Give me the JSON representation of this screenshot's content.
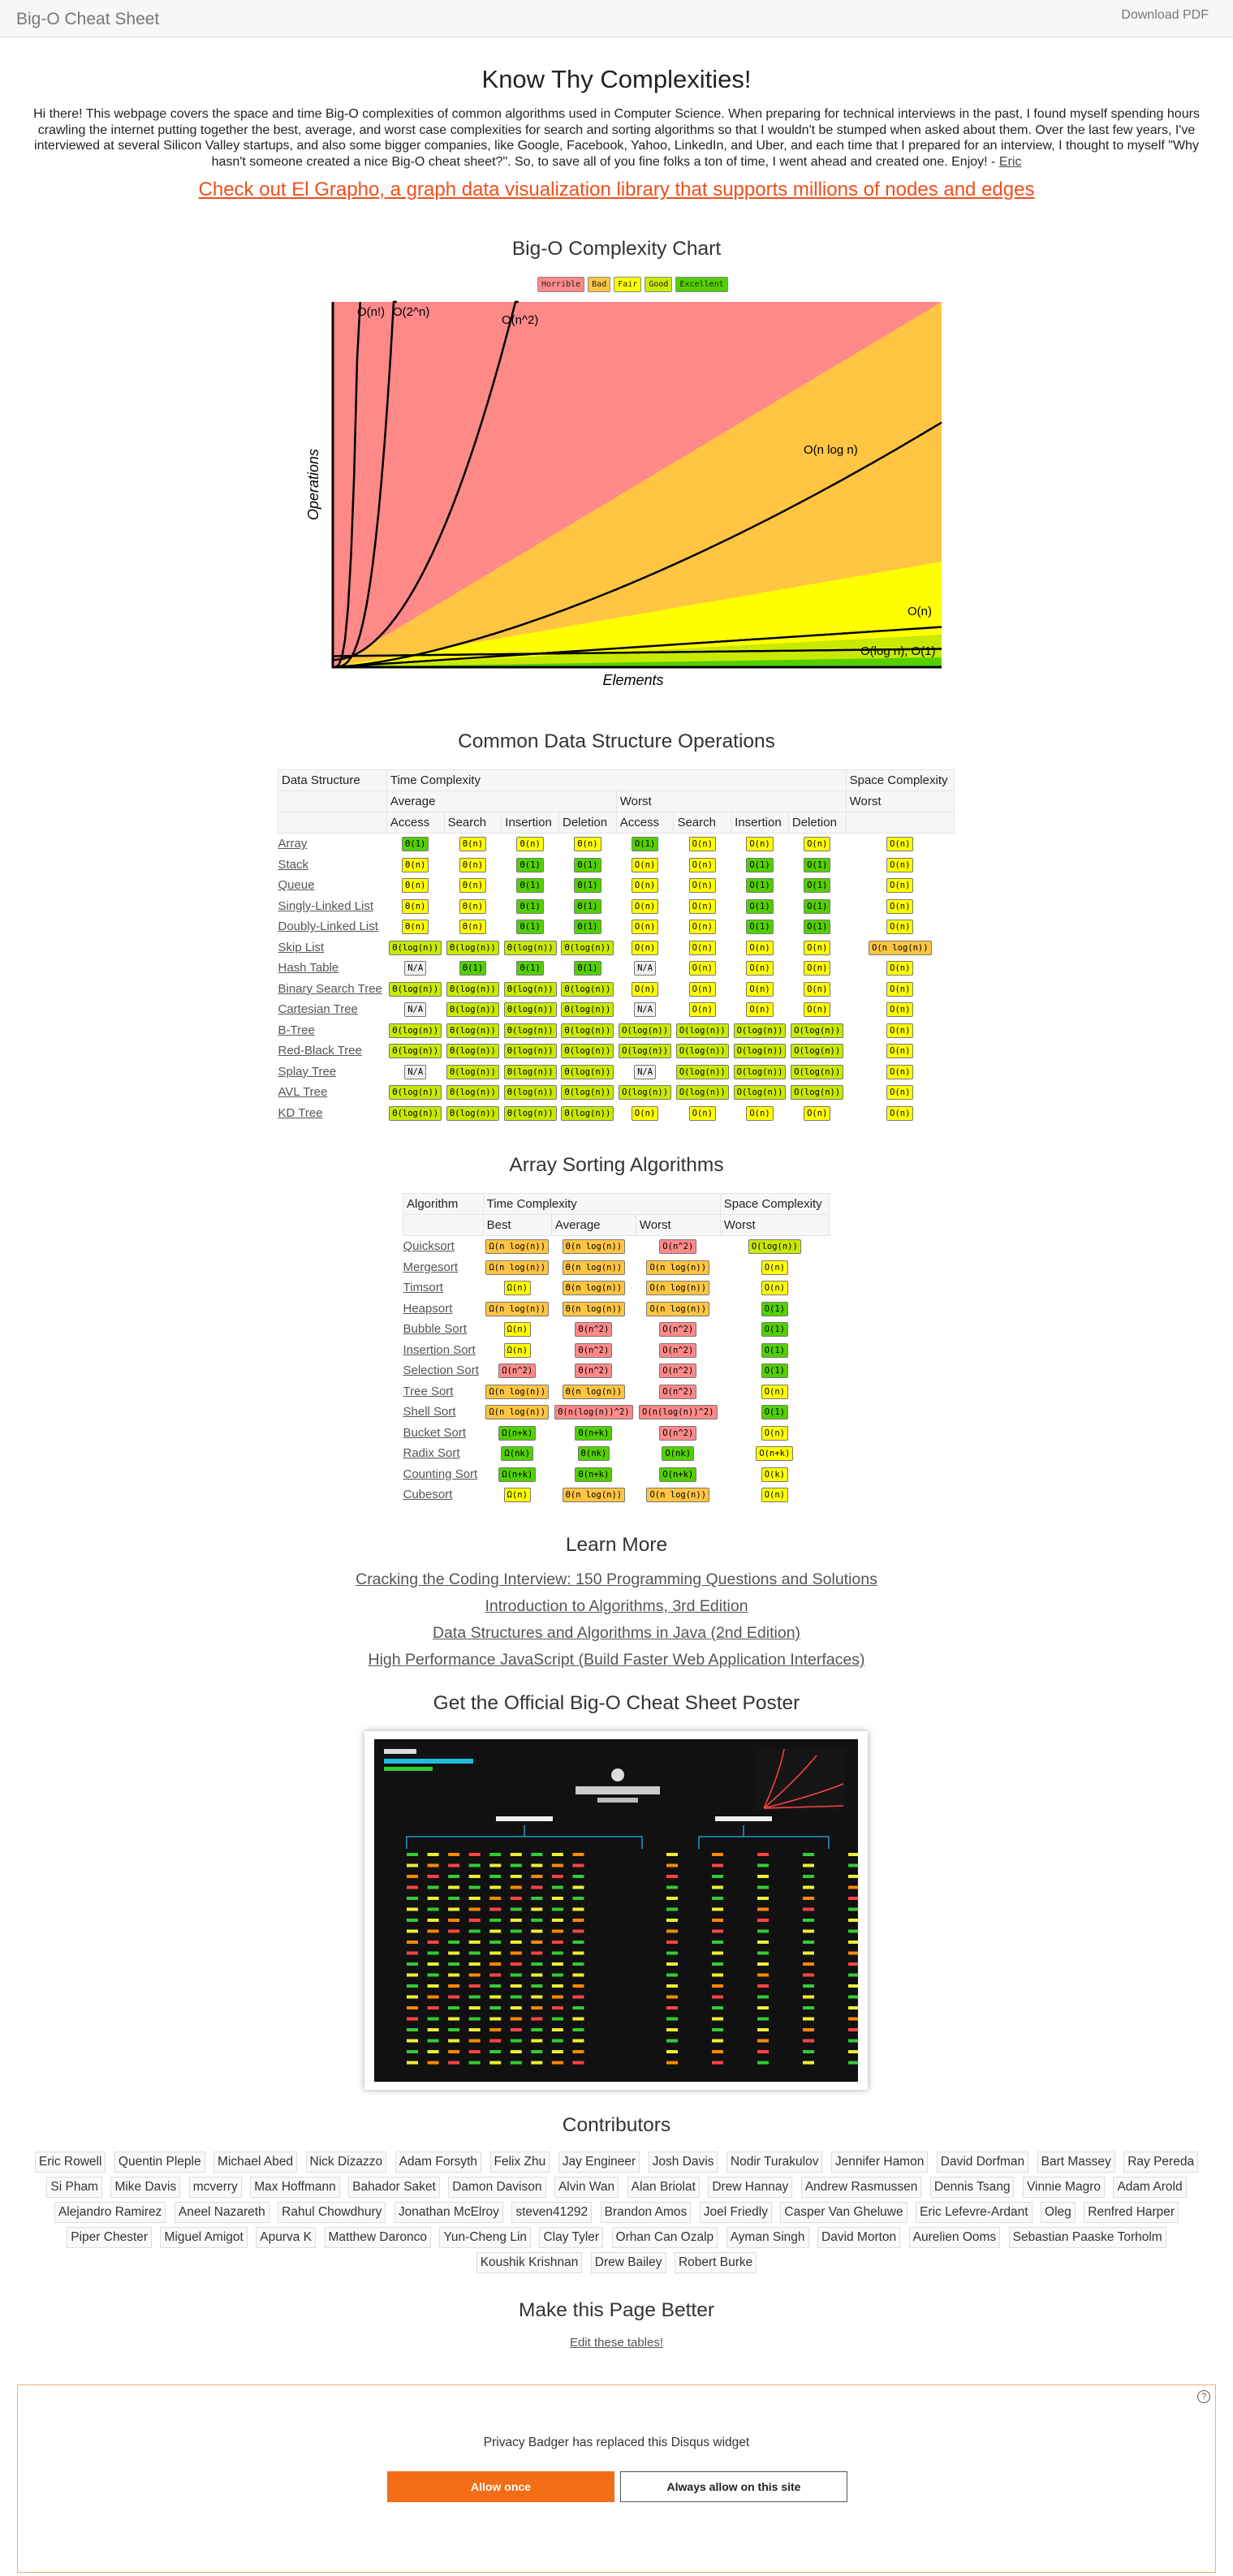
{
  "nav": {
    "brand": "Big-O Cheat Sheet",
    "download": "Download PDF"
  },
  "title": "Know Thy Complexities!",
  "intro": "Hi there!  This webpage covers the space and time Big-O complexities of common algorithms used in Computer Science.  When preparing for technical interviews in the past, I found myself spending hours crawling the internet putting together the best, average, and worst case complexities for search and sorting algorithms so that I wouldn't be stumped when asked about them.  Over the last few years, I've interviewed at several Silicon Valley startups, and also some bigger companies, like Google, Facebook, Yahoo, LinkedIn, and Uber, and each time that I prepared for an interview, I thought to myself \"Why hasn't someone created a nice Big-O cheat sheet?\".  So, to save all of you fine folks a ton of time, I went ahead and created one.  Enjoy! - ",
  "intro_author": "Eric",
  "promo": "Check out El Grapho, a graph data visualization library that supports millions of nodes and edges",
  "chart_heading": "Big-O Complexity Chart",
  "legend": [
    {
      "label": "Horrible",
      "color": "#ff8989"
    },
    {
      "label": "Bad",
      "color": "#ffc543"
    },
    {
      "label": "Fair",
      "color": "#ffff00"
    },
    {
      "label": "Good",
      "color": "#c8ea00"
    },
    {
      "label": "Excellent",
      "color": "#53d000"
    }
  ],
  "chart_data": {
    "type": "line",
    "xlabel": "Elements",
    "ylabel": "Operations",
    "series": [
      {
        "name": "O(log n), O(1)"
      },
      {
        "name": "O(n)"
      },
      {
        "name": "O(n log n)"
      },
      {
        "name": "O(n^2)"
      },
      {
        "name": "O(2^n)"
      },
      {
        "name": "O(n!)"
      }
    ]
  },
  "ds_heading": "Common Data Structure Operations",
  "ds_head": {
    "col1": "Data Structure",
    "time": "Time Complexity",
    "space": "Space Complexity",
    "avg": "Average",
    "worst": "Worst",
    "sworst": "Worst",
    "ops": [
      "Access",
      "Search",
      "Insertion",
      "Deletion",
      "Access",
      "Search",
      "Insertion",
      "Deletion"
    ]
  },
  "ds_rows": [
    {
      "name": "Array",
      "cells": [
        [
          "Θ(1)",
          "g"
        ],
        [
          "Θ(n)",
          "y"
        ],
        [
          "Θ(n)",
          "y"
        ],
        [
          "Θ(n)",
          "y"
        ],
        [
          "O(1)",
          "g"
        ],
        [
          "O(n)",
          "y"
        ],
        [
          "O(n)",
          "y"
        ],
        [
          "O(n)",
          "y"
        ],
        [
          "O(n)",
          "y"
        ]
      ]
    },
    {
      "name": "Stack",
      "cells": [
        [
          "Θ(n)",
          "y"
        ],
        [
          "Θ(n)",
          "y"
        ],
        [
          "Θ(1)",
          "g"
        ],
        [
          "Θ(1)",
          "g"
        ],
        [
          "O(n)",
          "y"
        ],
        [
          "O(n)",
          "y"
        ],
        [
          "O(1)",
          "g"
        ],
        [
          "O(1)",
          "g"
        ],
        [
          "O(n)",
          "y"
        ]
      ]
    },
    {
      "name": "Queue",
      "cells": [
        [
          "Θ(n)",
          "y"
        ],
        [
          "Θ(n)",
          "y"
        ],
        [
          "Θ(1)",
          "g"
        ],
        [
          "Θ(1)",
          "g"
        ],
        [
          "O(n)",
          "y"
        ],
        [
          "O(n)",
          "y"
        ],
        [
          "O(1)",
          "g"
        ],
        [
          "O(1)",
          "g"
        ],
        [
          "O(n)",
          "y"
        ]
      ]
    },
    {
      "name": "Singly-Linked List",
      "cells": [
        [
          "Θ(n)",
          "y"
        ],
        [
          "Θ(n)",
          "y"
        ],
        [
          "Θ(1)",
          "g"
        ],
        [
          "Θ(1)",
          "g"
        ],
        [
          "O(n)",
          "y"
        ],
        [
          "O(n)",
          "y"
        ],
        [
          "O(1)",
          "g"
        ],
        [
          "O(1)",
          "g"
        ],
        [
          "O(n)",
          "y"
        ]
      ]
    },
    {
      "name": "Doubly-Linked List",
      "cells": [
        [
          "Θ(n)",
          "y"
        ],
        [
          "Θ(n)",
          "y"
        ],
        [
          "Θ(1)",
          "g"
        ],
        [
          "Θ(1)",
          "g"
        ],
        [
          "O(n)",
          "y"
        ],
        [
          "O(n)",
          "y"
        ],
        [
          "O(1)",
          "g"
        ],
        [
          "O(1)",
          "g"
        ],
        [
          "O(n)",
          "y"
        ]
      ]
    },
    {
      "name": "Skip List",
      "cells": [
        [
          "Θ(log(n))",
          "lg2"
        ],
        [
          "Θ(log(n))",
          "lg2"
        ],
        [
          "Θ(log(n))",
          "lg2"
        ],
        [
          "Θ(log(n))",
          "lg2"
        ],
        [
          "O(n)",
          "y"
        ],
        [
          "O(n)",
          "y"
        ],
        [
          "O(n)",
          "y"
        ],
        [
          "O(n)",
          "y"
        ],
        [
          "O(n log(n))",
          "o"
        ]
      ]
    },
    {
      "name": "Hash Table",
      "cells": [
        [
          "N/A",
          "na"
        ],
        [
          "Θ(1)",
          "g"
        ],
        [
          "Θ(1)",
          "g"
        ],
        [
          "Θ(1)",
          "g"
        ],
        [
          "N/A",
          "na"
        ],
        [
          "O(n)",
          "y"
        ],
        [
          "O(n)",
          "y"
        ],
        [
          "O(n)",
          "y"
        ],
        [
          "O(n)",
          "y"
        ]
      ]
    },
    {
      "name": "Binary Search Tree",
      "cells": [
        [
          "Θ(log(n))",
          "lg2"
        ],
        [
          "Θ(log(n))",
          "lg2"
        ],
        [
          "Θ(log(n))",
          "lg2"
        ],
        [
          "Θ(log(n))",
          "lg2"
        ],
        [
          "O(n)",
          "y"
        ],
        [
          "O(n)",
          "y"
        ],
        [
          "O(n)",
          "y"
        ],
        [
          "O(n)",
          "y"
        ],
        [
          "O(n)",
          "y"
        ]
      ]
    },
    {
      "name": "Cartesian Tree",
      "cells": [
        [
          "N/A",
          "na"
        ],
        [
          "Θ(log(n))",
          "lg2"
        ],
        [
          "Θ(log(n))",
          "lg2"
        ],
        [
          "Θ(log(n))",
          "lg2"
        ],
        [
          "N/A",
          "na"
        ],
        [
          "O(n)",
          "y"
        ],
        [
          "O(n)",
          "y"
        ],
        [
          "O(n)",
          "y"
        ],
        [
          "O(n)",
          "y"
        ]
      ]
    },
    {
      "name": "B-Tree",
      "cells": [
        [
          "Θ(log(n))",
          "lg2"
        ],
        [
          "Θ(log(n))",
          "lg2"
        ],
        [
          "Θ(log(n))",
          "lg2"
        ],
        [
          "Θ(log(n))",
          "lg2"
        ],
        [
          "O(log(n))",
          "lg2"
        ],
        [
          "O(log(n))",
          "lg2"
        ],
        [
          "O(log(n))",
          "lg2"
        ],
        [
          "O(log(n))",
          "lg2"
        ],
        [
          "O(n)",
          "y"
        ]
      ]
    },
    {
      "name": "Red-Black Tree",
      "cells": [
        [
          "Θ(log(n))",
          "lg2"
        ],
        [
          "Θ(log(n))",
          "lg2"
        ],
        [
          "Θ(log(n))",
          "lg2"
        ],
        [
          "Θ(log(n))",
          "lg2"
        ],
        [
          "O(log(n))",
          "lg2"
        ],
        [
          "O(log(n))",
          "lg2"
        ],
        [
          "O(log(n))",
          "lg2"
        ],
        [
          "O(log(n))",
          "lg2"
        ],
        [
          "O(n)",
          "y"
        ]
      ]
    },
    {
      "name": "Splay Tree",
      "cells": [
        [
          "N/A",
          "na"
        ],
        [
          "Θ(log(n))",
          "lg2"
        ],
        [
          "Θ(log(n))",
          "lg2"
        ],
        [
          "Θ(log(n))",
          "lg2"
        ],
        [
          "N/A",
          "na"
        ],
        [
          "O(log(n))",
          "lg2"
        ],
        [
          "O(log(n))",
          "lg2"
        ],
        [
          "O(log(n))",
          "lg2"
        ],
        [
          "O(n)",
          "y"
        ]
      ]
    },
    {
      "name": "AVL Tree",
      "cells": [
        [
          "Θ(log(n))",
          "lg2"
        ],
        [
          "Θ(log(n))",
          "lg2"
        ],
        [
          "Θ(log(n))",
          "lg2"
        ],
        [
          "Θ(log(n))",
          "lg2"
        ],
        [
          "O(log(n))",
          "lg2"
        ],
        [
          "O(log(n))",
          "lg2"
        ],
        [
          "O(log(n))",
          "lg2"
        ],
        [
          "O(log(n))",
          "lg2"
        ],
        [
          "O(n)",
          "y"
        ]
      ]
    },
    {
      "name": "KD Tree",
      "cells": [
        [
          "Θ(log(n))",
          "lg2"
        ],
        [
          "Θ(log(n))",
          "lg2"
        ],
        [
          "Θ(log(n))",
          "lg2"
        ],
        [
          "Θ(log(n))",
          "lg2"
        ],
        [
          "O(n)",
          "y"
        ],
        [
          "O(n)",
          "y"
        ],
        [
          "O(n)",
          "y"
        ],
        [
          "O(n)",
          "y"
        ],
        [
          "O(n)",
          "y"
        ]
      ]
    }
  ],
  "sort_heading": "Array Sorting Algorithms",
  "sort_head": {
    "col1": "Algorithm",
    "time": "Time Complexity",
    "space": "Space Complexity",
    "best": "Best",
    "avg": "Average",
    "worst": "Worst",
    "sworst": "Worst"
  },
  "sort_rows": [
    {
      "name": "Quicksort",
      "cells": [
        [
          "Ω(n log(n))",
          "o"
        ],
        [
          "Θ(n log(n))",
          "o"
        ],
        [
          "O(n^2)",
          "r"
        ],
        [
          "O(log(n))",
          "lg2"
        ]
      ]
    },
    {
      "name": "Mergesort",
      "cells": [
        [
          "Ω(n log(n))",
          "o"
        ],
        [
          "Θ(n log(n))",
          "o"
        ],
        [
          "O(n log(n))",
          "o"
        ],
        [
          "O(n)",
          "y"
        ]
      ]
    },
    {
      "name": "Timsort",
      "cells": [
        [
          "Ω(n)",
          "y"
        ],
        [
          "Θ(n log(n))",
          "o"
        ],
        [
          "O(n log(n))",
          "o"
        ],
        [
          "O(n)",
          "y"
        ]
      ]
    },
    {
      "name": "Heapsort",
      "cells": [
        [
          "Ω(n log(n))",
          "o"
        ],
        [
          "Θ(n log(n))",
          "o"
        ],
        [
          "O(n log(n))",
          "o"
        ],
        [
          "O(1)",
          "g"
        ]
      ]
    },
    {
      "name": "Bubble Sort",
      "cells": [
        [
          "Ω(n)",
          "y"
        ],
        [
          "Θ(n^2)",
          "r"
        ],
        [
          "O(n^2)",
          "r"
        ],
        [
          "O(1)",
          "g"
        ]
      ]
    },
    {
      "name": "Insertion Sort",
      "cells": [
        [
          "Ω(n)",
          "y"
        ],
        [
          "Θ(n^2)",
          "r"
        ],
        [
          "O(n^2)",
          "r"
        ],
        [
          "O(1)",
          "g"
        ]
      ]
    },
    {
      "name": "Selection Sort",
      "cells": [
        [
          "Ω(n^2)",
          "r"
        ],
        [
          "Θ(n^2)",
          "r"
        ],
        [
          "O(n^2)",
          "r"
        ],
        [
          "O(1)",
          "g"
        ]
      ]
    },
    {
      "name": "Tree Sort",
      "cells": [
        [
          "Ω(n log(n))",
          "o"
        ],
        [
          "Θ(n log(n))",
          "o"
        ],
        [
          "O(n^2)",
          "r"
        ],
        [
          "O(n)",
          "y"
        ]
      ]
    },
    {
      "name": "Shell Sort",
      "cells": [
        [
          "Ω(n log(n))",
          "o"
        ],
        [
          "Θ(n(log(n))^2)",
          "r"
        ],
        [
          "O(n(log(n))^2)",
          "r"
        ],
        [
          "O(1)",
          "g"
        ]
      ]
    },
    {
      "name": "Bucket Sort",
      "cells": [
        [
          "Ω(n+k)",
          "g"
        ],
        [
          "Θ(n+k)",
          "g"
        ],
        [
          "O(n^2)",
          "r"
        ],
        [
          "O(n)",
          "y"
        ]
      ]
    },
    {
      "name": "Radix Sort",
      "cells": [
        [
          "Ω(nk)",
          "g"
        ],
        [
          "Θ(nk)",
          "g"
        ],
        [
          "O(nk)",
          "g"
        ],
        [
          "O(n+k)",
          "y"
        ]
      ]
    },
    {
      "name": "Counting Sort",
      "cells": [
        [
          "Ω(n+k)",
          "g"
        ],
        [
          "Θ(n+k)",
          "g"
        ],
        [
          "O(n+k)",
          "g"
        ],
        [
          "O(k)",
          "y"
        ]
      ]
    },
    {
      "name": "Cubesort",
      "cells": [
        [
          "Ω(n)",
          "y"
        ],
        [
          "Θ(n log(n))",
          "o"
        ],
        [
          "O(n log(n))",
          "o"
        ],
        [
          "O(n)",
          "y"
        ]
      ]
    }
  ],
  "learn_heading": "Learn More",
  "learn_links": [
    "Cracking the Coding Interview: 150 Programming Questions and Solutions",
    "Introduction to Algorithms, 3rd Edition",
    "Data Structures and Algorithms in Java (2nd Edition)",
    "High Performance JavaScript (Build Faster Web Application Interfaces)"
  ],
  "poster_heading": "Get the Official Big-O Cheat Sheet Poster",
  "contrib_heading": "Contributors",
  "contributors": [
    "Eric Rowell",
    "Quentin Pleple",
    "Michael Abed",
    "Nick Dizazzo",
    "Adam Forsyth",
    "Felix Zhu",
    "Jay Engineer",
    "Josh Davis",
    "Nodir Turakulov",
    "Jennifer Hamon",
    "David Dorfman",
    "Bart Massey",
    "Ray Pereda",
    "Si Pham",
    "Mike Davis",
    "mcverry",
    "Max Hoffmann",
    "Bahador Saket",
    "Damon Davison",
    "Alvin Wan",
    "Alan Briolat",
    "Drew Hannay",
    "Andrew Rasmussen",
    "Dennis Tsang",
    "Vinnie Magro",
    "Adam Arold",
    "Alejandro Ramirez",
    "Aneel Nazareth",
    "Rahul Chowdhury",
    "Jonathan McElroy",
    "steven41292",
    "Brandon Amos",
    "Joel Friedly",
    "Casper Van Gheluwe",
    "Eric Lefevre-Ardant",
    "Oleg",
    "Renfred Harper",
    "Piper Chester",
    "Miguel Amigot",
    "Apurva K",
    "Matthew Daronco",
    "Yun-Cheng Lin",
    "Clay Tyler",
    "Orhan Can Ozalp",
    "Ayman Singh",
    "David Morton",
    "Aurelien Ooms",
    "Sebastian Paaske Torholm",
    "Koushik Krishnan",
    "Drew Bailey",
    "Robert Burke"
  ],
  "better_heading": "Make this Page Better",
  "edit_link": "Edit these tables!",
  "disqus": {
    "message": "Privacy Badger has replaced this Disqus widget",
    "allow_once": "Allow once",
    "always_allow": "Always allow on this site",
    "help": "?"
  }
}
